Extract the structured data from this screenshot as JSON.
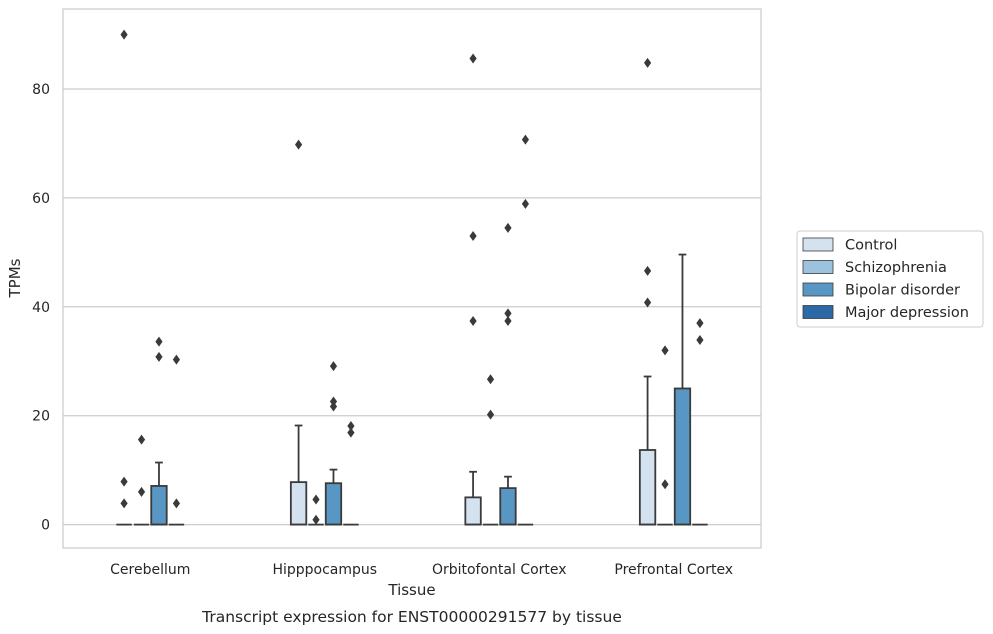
{
  "chart_data": {
    "type": "box",
    "caption": "Transcript expression for ENST00000291577 by tissue",
    "xlabel": "Tissue",
    "ylabel": "TPMs",
    "ylim": [
      -4.3,
      94.7
    ],
    "yticks": [
      0,
      20,
      40,
      60,
      80
    ],
    "grid": "horizontal",
    "legend_position": "right",
    "categories": [
      "Cerebellum",
      "Hipppocampus",
      "Orbitofontal Cortex",
      "Prefrontal Cortex"
    ],
    "series": [
      {
        "name": "Control",
        "color": "#d4e2f0",
        "boxes": [
          {
            "min": 0,
            "q1": 0,
            "median": 0,
            "q3": 0,
            "max": 0,
            "outliers": [
              90.0,
              7.9,
              3.9
            ]
          },
          {
            "min": 0,
            "q1": 0,
            "median": 0,
            "q3": 7.8,
            "max": 18.2,
            "outliers": [
              69.8
            ]
          },
          {
            "min": 0,
            "q1": 0,
            "median": 0,
            "q3": 5.0,
            "max": 9.7,
            "outliers": [
              85.6,
              53.0,
              37.4
            ]
          },
          {
            "min": 0,
            "q1": 0,
            "median": 0,
            "q3": 13.7,
            "max": 27.2,
            "outliers": [
              84.8,
              46.6,
              40.8
            ]
          }
        ]
      },
      {
        "name": "Schizophrenia",
        "color": "#9cc2dd",
        "boxes": [
          {
            "min": 0,
            "q1": 0,
            "median": 0,
            "q3": 0,
            "max": 0,
            "outliers": [
              15.6,
              6.0
            ]
          },
          {
            "min": 0,
            "q1": 0,
            "median": 0,
            "q3": 0,
            "max": 0,
            "outliers": [
              4.6,
              0.9
            ]
          },
          {
            "min": 0,
            "q1": 0,
            "median": 0,
            "q3": 0,
            "max": 0,
            "outliers": [
              26.7,
              20.2
            ]
          },
          {
            "min": 0,
            "q1": 0,
            "median": 0,
            "q3": 0,
            "max": 0,
            "outliers": [
              32.0,
              7.4
            ]
          }
        ]
      },
      {
        "name": "Bipolar disorder",
        "color": "#5897c4",
        "boxes": [
          {
            "min": 0,
            "q1": 0,
            "median": 0,
            "q3": 7.1,
            "max": 11.4,
            "outliers": [
              33.6,
              30.8
            ]
          },
          {
            "min": 0,
            "q1": 0,
            "median": 0,
            "q3": 7.6,
            "max": 10.1,
            "outliers": [
              29.1,
              22.6,
              21.7
            ]
          },
          {
            "min": 0,
            "q1": 0,
            "median": 0,
            "q3": 6.7,
            "max": 8.8,
            "outliers": [
              54.5,
              38.8,
              37.4
            ]
          },
          {
            "min": 0,
            "q1": 0,
            "median": 0,
            "q3": 25.0,
            "max": 49.6,
            "outliers": []
          }
        ]
      },
      {
        "name": "Major depression",
        "color": "#2b6aa6",
        "boxes": [
          {
            "min": 0,
            "q1": 0,
            "median": 0,
            "q3": 0,
            "max": 0,
            "outliers": [
              30.3,
              3.9
            ]
          },
          {
            "min": 0,
            "q1": 0,
            "median": 0,
            "q3": 0,
            "max": 0,
            "outliers": [
              18.1,
              16.9
            ]
          },
          {
            "min": 0,
            "q1": 0,
            "median": 0,
            "q3": 0,
            "max": 0,
            "outliers": [
              70.7,
              58.9
            ]
          },
          {
            "min": 0,
            "q1": 0,
            "median": 0,
            "q3": 0,
            "max": 0,
            "outliers": [
              37.0,
              33.9
            ]
          }
        ]
      }
    ]
  }
}
